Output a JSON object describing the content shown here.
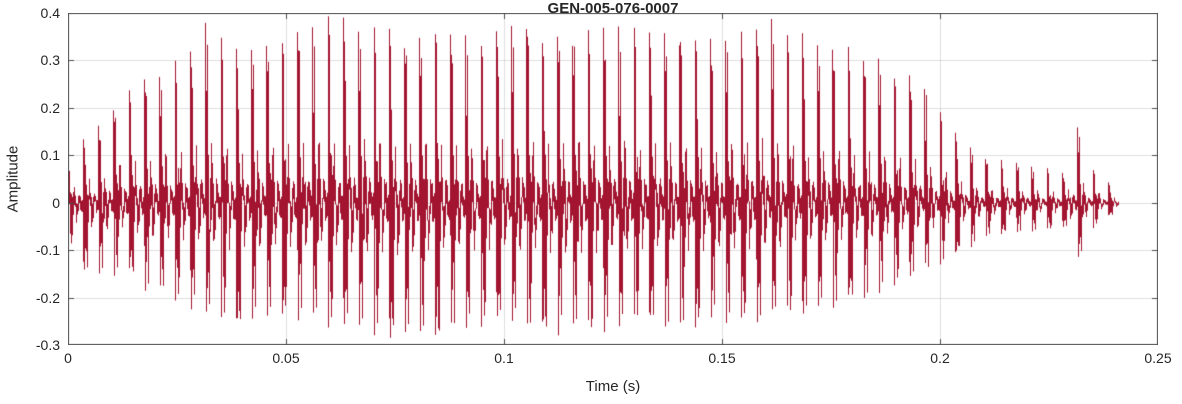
{
  "chart_data": {
    "type": "line",
    "subtype": "audio-waveform",
    "title": "GEN-005-076-0007",
    "xlabel": "Time (s)",
    "ylabel": "Amplitude",
    "xlim": [
      0,
      0.25
    ],
    "ylim": [
      -0.3,
      0.4
    ],
    "xticks": [
      0,
      0.05,
      0.1,
      0.15,
      0.2,
      0.25
    ],
    "xtick_labels": [
      "0",
      "0.05",
      "0.1",
      "0.15",
      "0.2",
      "0.25"
    ],
    "yticks": [
      -0.3,
      -0.2,
      -0.1,
      0,
      0.1,
      0.2,
      0.3,
      0.4
    ],
    "ytick_labels": [
      "-0.3",
      "-0.2",
      "-0.1",
      "0",
      "0.1",
      "0.2",
      "0.3",
      "0.4"
    ],
    "grid": true,
    "legend": null,
    "line_color": "#A2142F",
    "grid_color": "rgba(38,38,38,0.15)",
    "axes_color": "#4d4d4d",
    "waveform": {
      "fundamental_hz": 285,
      "duration_s": 0.241,
      "envelope": {
        "t": [
          0,
          0.003,
          0.008,
          0.012,
          0.02,
          0.027,
          0.031,
          0.04,
          0.05,
          0.058,
          0.07,
          0.08,
          0.085,
          0.09,
          0.101,
          0.11,
          0.12,
          0.13,
          0.14,
          0.15,
          0.161,
          0.17,
          0.18,
          0.19,
          0.198,
          0.205,
          0.21,
          0.22,
          0.229,
          0.2315,
          0.234,
          0.238,
          0.241
        ],
        "upper": [
          0.07,
          0.13,
          0.16,
          0.22,
          0.27,
          0.3,
          0.375,
          0.31,
          0.345,
          0.385,
          0.37,
          0.34,
          0.375,
          0.33,
          0.375,
          0.35,
          0.36,
          0.37,
          0.355,
          0.34,
          0.38,
          0.33,
          0.31,
          0.28,
          0.24,
          0.13,
          0.09,
          0.08,
          0.06,
          0.17,
          0.08,
          0.05,
          0.02
        ],
        "lower": [
          -0.07,
          -0.13,
          -0.14,
          -0.14,
          -0.18,
          -0.2,
          -0.22,
          -0.25,
          -0.22,
          -0.24,
          -0.26,
          -0.27,
          -0.27,
          -0.25,
          -0.24,
          -0.26,
          -0.26,
          -0.24,
          -0.25,
          -0.24,
          -0.23,
          -0.22,
          -0.2,
          -0.16,
          -0.13,
          -0.1,
          -0.07,
          -0.06,
          -0.05,
          -0.13,
          -0.06,
          -0.03,
          -0.02
        ]
      }
    }
  }
}
